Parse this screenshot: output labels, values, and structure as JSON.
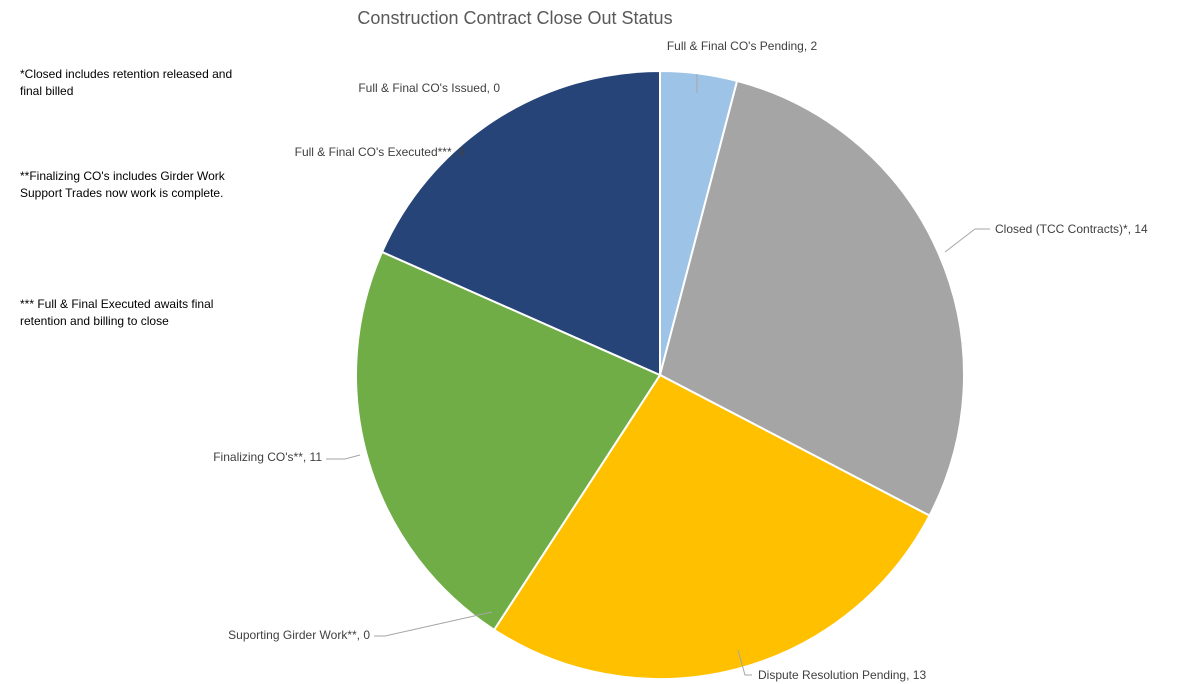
{
  "chart_data": {
    "type": "pie",
    "title": "Construction Contract Close Out Status",
    "slices": [
      {
        "label": "Full & Final CO's Pending",
        "value": 2,
        "color": "#9DC3E6"
      },
      {
        "label": "Closed (TCC Contracts)*",
        "value": 14,
        "color": "#A5A5A5"
      },
      {
        "label": "Dispute Resolution Pending",
        "value": 13,
        "color": "#FFC000"
      },
      {
        "label": "Suporting Girder Work**",
        "value": 0,
        "color": "#4472C4"
      },
      {
        "label": "Finalizing CO's**",
        "value": 11,
        "color": "#70AD47"
      },
      {
        "label": "Full & Final CO's Executed***",
        "value": 9,
        "color": "#264478"
      },
      {
        "label": "Full & Final CO's Issued",
        "value": 0,
        "color": "#5B9BD5"
      }
    ],
    "data_labels": [
      "Full & Final CO's Pending, 2",
      "Closed (TCC Contracts)*, 14",
      "Dispute Resolution Pending, 13",
      "Suporting Girder Work**, 0",
      "Finalizing CO's**, 11",
      "Full & Final CO's Executed***, 9",
      "Full & Final CO's Issued, 0"
    ]
  },
  "notes": [
    "*Closed includes retention released and final billed",
    "**Finalizing CO's includes Girder Work Support Trades now work is complete.",
    "*** Full & Final Executed awaits final retention and billing to close"
  ]
}
